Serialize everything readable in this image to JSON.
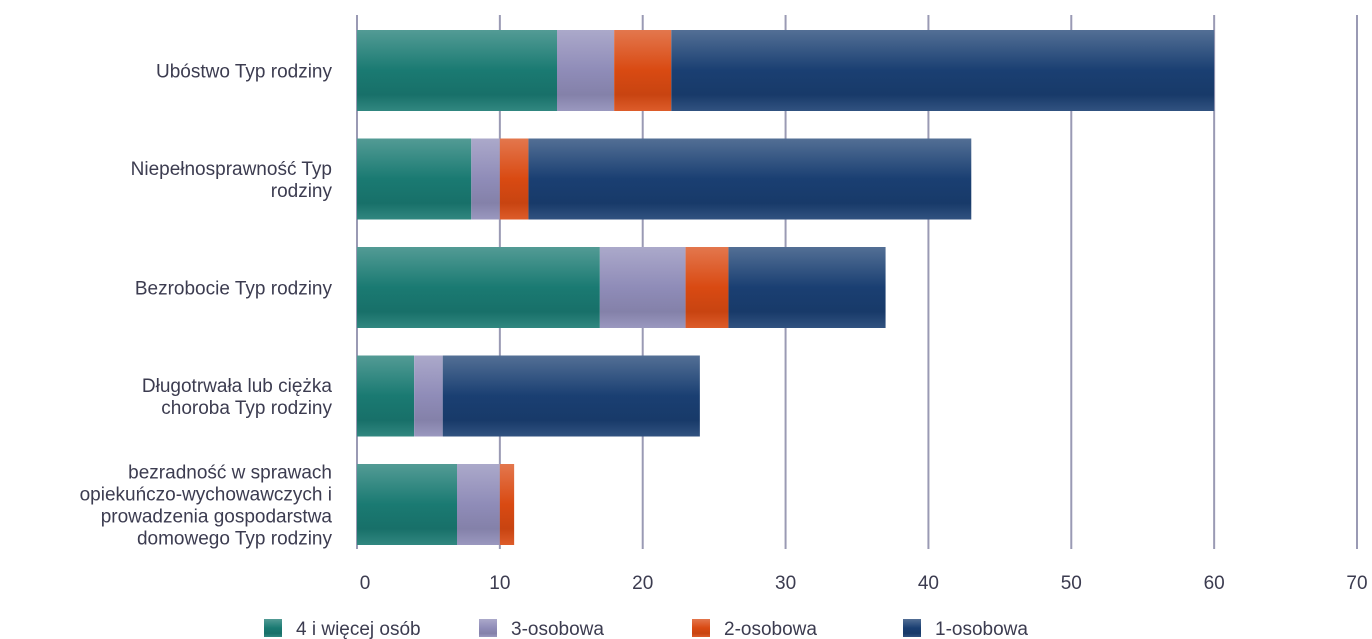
{
  "chart_data": {
    "type": "bar",
    "orientation": "horizontal",
    "stacked": true,
    "title": "",
    "xlabel": "",
    "ylabel": "",
    "categories": [
      [
        "Ubóstwo Typ rodziny"
      ],
      [
        "Niepełnosprawność Typ",
        "rodziny"
      ],
      [
        "Bezrobocie Typ rodziny"
      ],
      [
        "Długotrwała lub ciężka",
        "choroba Typ rodziny"
      ],
      [
        "bezradność w sprawach",
        "opiekuńczo-wychowawczych i",
        "prowadzenia gospodarstwa",
        "domowego Typ rodziny"
      ]
    ],
    "series": [
      {
        "name": "4 i więcej osób",
        "color": "#1a7a72",
        "values": [
          14,
          8,
          17,
          4,
          7
        ]
      },
      {
        "name": "3-osobowa",
        "color": "#8f8cb8",
        "values": [
          4,
          2,
          6,
          2,
          3
        ]
      },
      {
        "name": "2-osobowa",
        "color": "#d94a12",
        "values": [
          4,
          2,
          3,
          0,
          1
        ]
      },
      {
        "name": "1-osobowa",
        "color": "#1a3f72",
        "values": [
          38,
          31,
          11,
          18,
          0
        ]
      }
    ],
    "xlim": [
      0,
      70
    ],
    "xticks": [
      "0",
      "10",
      "20",
      "30",
      "40",
      "50",
      "60",
      "70"
    ],
    "grid": true,
    "gridline_color": "#9a9ab4",
    "legend_position": "bottom"
  }
}
